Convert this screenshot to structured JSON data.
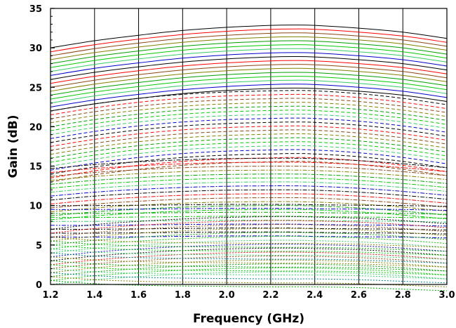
{
  "chart_data": {
    "type": "line",
    "title": "",
    "xlabel": "Frequency (GHz)",
    "ylabel": "Gain (dB)",
    "xlim": [
      1.2,
      3.0
    ],
    "ylim": [
      0,
      35
    ],
    "xticks": [
      "1.2",
      "1.4",
      "1.6",
      "1.8",
      "2.0",
      "2.2",
      "2.4",
      "2.6",
      "2.8",
      "3.0"
    ],
    "yticks": [
      "0",
      "5",
      "10",
      "15",
      "20",
      "25",
      "30",
      "35"
    ],
    "grid": "vertical",
    "legend": "none",
    "x": [
      1.2,
      1.4,
      1.6,
      1.8,
      2.0,
      2.2,
      2.3,
      2.4,
      2.6,
      2.8,
      3.0
    ],
    "groups": [
      {
        "style": "solid",
        "offsets": [
          0,
          0.5,
          1,
          1.5,
          2,
          2.5,
          3,
          3.5,
          4,
          4.5,
          5,
          5.5,
          6,
          6.5,
          7,
          7.5,
          8
        ],
        "colors": [
          "#000000",
          "#ff0000",
          "#8b4513",
          "#808000",
          "#00a000",
          "#00cc00",
          "#33cc66",
          "#0000cc"
        ],
        "base": [
          30.0,
          30.9,
          31.6,
          32.2,
          32.6,
          32.85,
          32.9,
          32.85,
          32.5,
          32.0,
          31.2
        ]
      },
      {
        "style": "dash",
        "offsets": [
          0,
          0.5,
          1,
          1.5,
          2,
          2.5,
          3,
          3.5,
          4,
          4.5,
          5,
          5.5,
          6,
          6.5,
          7,
          7.5,
          8,
          8.5,
          9
        ],
        "colors": [
          "#000000",
          "#ff0000",
          "#8b4513",
          "#808000",
          "#00a000",
          "#00cc00",
          "#33cc66",
          "#0000cc"
        ],
        "base": [
          22.0,
          22.9,
          23.6,
          24.1,
          24.4,
          24.55,
          24.6,
          24.55,
          24.2,
          23.6,
          22.8
        ]
      },
      {
        "style": "dashdot",
        "offsets": [
          0,
          0.5,
          1,
          1.5,
          2,
          2.5,
          3,
          3.5,
          4,
          4.5,
          5,
          5.5,
          6,
          6.5
        ],
        "colors": [
          "#000000",
          "#ff0000",
          "#8b4513",
          "#808000",
          "#00a000",
          "#00cc00",
          "#33cc66",
          "#0000cc"
        ],
        "base": [
          14.7,
          15.2,
          15.55,
          15.8,
          15.95,
          16.0,
          16.0,
          15.95,
          15.7,
          15.3,
          14.8
        ]
      },
      {
        "style": "dashdotdot",
        "offsets": [
          0,
          0.5,
          1,
          1.5,
          2,
          2.5,
          3,
          3.5,
          4
        ],
        "colors": [
          "#000000",
          "#0000cc",
          "#00a000",
          "#00cc00",
          "#33cc66",
          "#0000cc",
          "#000000"
        ],
        "base": [
          10.0,
          10.0,
          10.05,
          10.1,
          10.15,
          10.15,
          10.15,
          10.1,
          10.05,
          10.0,
          9.9
        ]
      },
      {
        "style": "dot",
        "offsets": [
          0,
          0.5,
          1,
          1.5,
          2,
          2.5,
          3,
          3.5,
          4,
          4.5,
          5,
          5.5,
          6,
          6.5,
          7
        ],
        "colors": [
          "#000000",
          "#ff0000",
          "#8b4513",
          "#808000",
          "#00a000",
          "#00cc00",
          "#33cc66",
          "#0000cc"
        ],
        "base": [
          7.0,
          7.6,
          8.0,
          8.3,
          8.5,
          8.6,
          8.6,
          8.55,
          8.4,
          8.1,
          7.7
        ]
      },
      {
        "style": "dot",
        "offsets": [
          0,
          0.5,
          1,
          1.5,
          2,
          2.5,
          3,
          3.5,
          4,
          4.5,
          5,
          5.5
        ],
        "colors": [
          "#808000",
          "#00a000",
          "#00cc00",
          "#33cc66",
          "#008080"
        ],
        "base": [
          6.0,
          5.6,
          5.4,
          5.3,
          5.25,
          5.2,
          5.2,
          5.2,
          5.1,
          4.9,
          4.7
        ]
      }
    ]
  }
}
